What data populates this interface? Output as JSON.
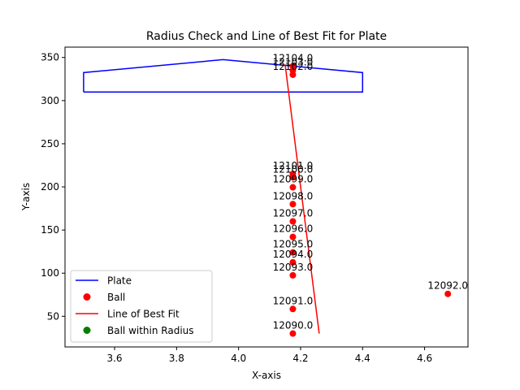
{
  "chart_data": {
    "type": "scatter",
    "title": "Radius Check and Line of Best Fit for Plate",
    "xlabel": "X-axis",
    "ylabel": "Y-axis",
    "xlim": [
      3.44,
      4.74
    ],
    "ylim": [
      14.5,
      362
    ],
    "x_ticks": [
      3.6,
      3.8,
      4.0,
      4.2,
      4.4,
      4.6
    ],
    "x_tick_labels": [
      "3.6",
      "3.8",
      "4.0",
      "4.2",
      "4.4",
      "4.6"
    ],
    "y_ticks": [
      50,
      100,
      150,
      200,
      250,
      300,
      350
    ],
    "y_tick_labels": [
      "50",
      "100",
      "150",
      "200",
      "250",
      "300",
      "350"
    ],
    "grid": false,
    "legend_position": "lower-left",
    "series": [
      {
        "name": "Plate",
        "kind": "line",
        "color": "#0000ff",
        "points": [
          [
            3.5,
            310
          ],
          [
            3.5,
            332.5
          ],
          [
            3.95,
            347.5
          ],
          [
            4.4,
            332.5
          ],
          [
            4.4,
            310
          ],
          [
            3.5,
            310
          ]
        ]
      },
      {
        "name": "Ball",
        "kind": "scatter",
        "color": "#ff0000",
        "points": [
          {
            "x": 4.175,
            "y": 30,
            "label": "12090.0"
          },
          {
            "x": 4.175,
            "y": 58.5,
            "label": "12091.0"
          },
          {
            "x": 4.675,
            "y": 76,
            "label": "12092.0"
          },
          {
            "x": 4.175,
            "y": 97.5,
            "label": "12093.0"
          },
          {
            "x": 4.175,
            "y": 112.5,
            "label": "12094.0"
          },
          {
            "x": 4.175,
            "y": 124,
            "label": "12095.0"
          },
          {
            "x": 4.175,
            "y": 142,
            "label": "12096.0"
          },
          {
            "x": 4.175,
            "y": 160,
            "label": "12097.0"
          },
          {
            "x": 4.175,
            "y": 180,
            "label": "12098.0"
          },
          {
            "x": 4.175,
            "y": 199.5,
            "label": "12099.0"
          },
          {
            "x": 4.175,
            "y": 211,
            "label": "12100.0"
          },
          {
            "x": 4.175,
            "y": 215,
            "label": "12101.0"
          },
          {
            "x": 4.175,
            "y": 330,
            "label": "12102.0"
          },
          {
            "x": 4.175,
            "y": 335,
            "label": "12103.0"
          },
          {
            "x": 4.175,
            "y": 340,
            "label": "12104.0"
          }
        ]
      },
      {
        "name": "Line of Best Fit",
        "kind": "line",
        "color": "#ff0000",
        "points": [
          [
            4.26,
            30
          ],
          [
            4.15,
            342
          ]
        ]
      },
      {
        "name": "Ball within Radius",
        "kind": "scatter",
        "color": "#008000",
        "points": []
      }
    ]
  }
}
